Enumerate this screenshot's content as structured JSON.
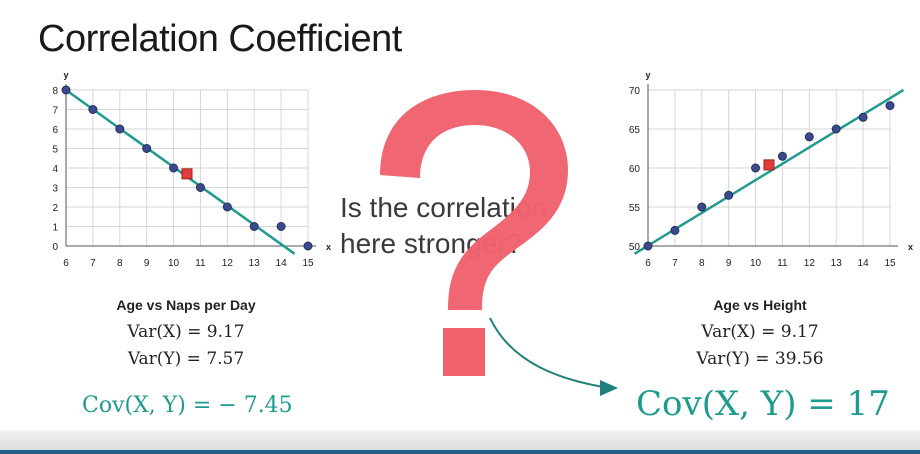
{
  "slide": {
    "title": "Correlation Coefficient",
    "question_line1": "Is the correlation",
    "question_line2": "here stronger?",
    "question_mark": "?"
  },
  "colors": {
    "line": "#1f9a8f",
    "point": "#3b4a8c",
    "mean_point": "#e23b3b",
    "question": "#f0626e",
    "grid": "#d6d6d6"
  },
  "left_stats": {
    "var_x_label": "Var(X) = 9.17",
    "var_y_label": "Var(Y) = 7.57",
    "cov_label": "Cov(X, Y) = − 7.45"
  },
  "right_stats": {
    "var_x_label": "Var(X) = 9.17",
    "var_y_label": "Var(Y) = 39.56",
    "cov_label": "Cov(X, Y) = 17"
  },
  "chart_data": [
    {
      "type": "scatter",
      "title": "Age vs Naps per Day",
      "xlabel": "x",
      "ylabel": "y",
      "xlim": [
        6,
        15
      ],
      "ylim": [
        0,
        8
      ],
      "xticks": [
        6,
        7,
        8,
        9,
        10,
        11,
        12,
        13,
        14,
        15
      ],
      "yticks": [
        0,
        1,
        2,
        3,
        4,
        5,
        6,
        7,
        8
      ],
      "grid": true,
      "points": [
        {
          "x": 6,
          "y": 8
        },
        {
          "x": 7,
          "y": 7
        },
        {
          "x": 8,
          "y": 6
        },
        {
          "x": 9,
          "y": 5
        },
        {
          "x": 10,
          "y": 4
        },
        {
          "x": 11,
          "y": 3
        },
        {
          "x": 12,
          "y": 2
        },
        {
          "x": 13,
          "y": 1
        },
        {
          "x": 14,
          "y": 1
        },
        {
          "x": 15,
          "y": 0
        }
      ],
      "mean_point": {
        "x": 10.5,
        "y": 3.7
      },
      "fit_line": [
        {
          "x": 6,
          "y": 8.0
        },
        {
          "x": 14.5,
          "y": -0.4
        }
      ]
    },
    {
      "type": "scatter",
      "title": "Age vs Height",
      "xlabel": "x",
      "ylabel": "y",
      "xlim": [
        6,
        15
      ],
      "ylim": [
        50,
        70
      ],
      "xticks": [
        6,
        7,
        8,
        9,
        10,
        11,
        12,
        13,
        14,
        15
      ],
      "yticks": [
        50,
        55,
        60,
        65,
        70
      ],
      "grid": true,
      "points": [
        {
          "x": 6,
          "y": 50
        },
        {
          "x": 7,
          "y": 52
        },
        {
          "x": 8,
          "y": 55
        },
        {
          "x": 9,
          "y": 56.5
        },
        {
          "x": 10,
          "y": 60
        },
        {
          "x": 11,
          "y": 61.5
        },
        {
          "x": 12,
          "y": 64
        },
        {
          "x": 13,
          "y": 65
        },
        {
          "x": 14,
          "y": 66.5
        },
        {
          "x": 15,
          "y": 68
        }
      ],
      "mean_point": {
        "x": 10.5,
        "y": 60.4
      },
      "fit_line": [
        {
          "x": 5.5,
          "y": 49.0
        },
        {
          "x": 15.5,
          "y": 70.0
        }
      ]
    }
  ]
}
